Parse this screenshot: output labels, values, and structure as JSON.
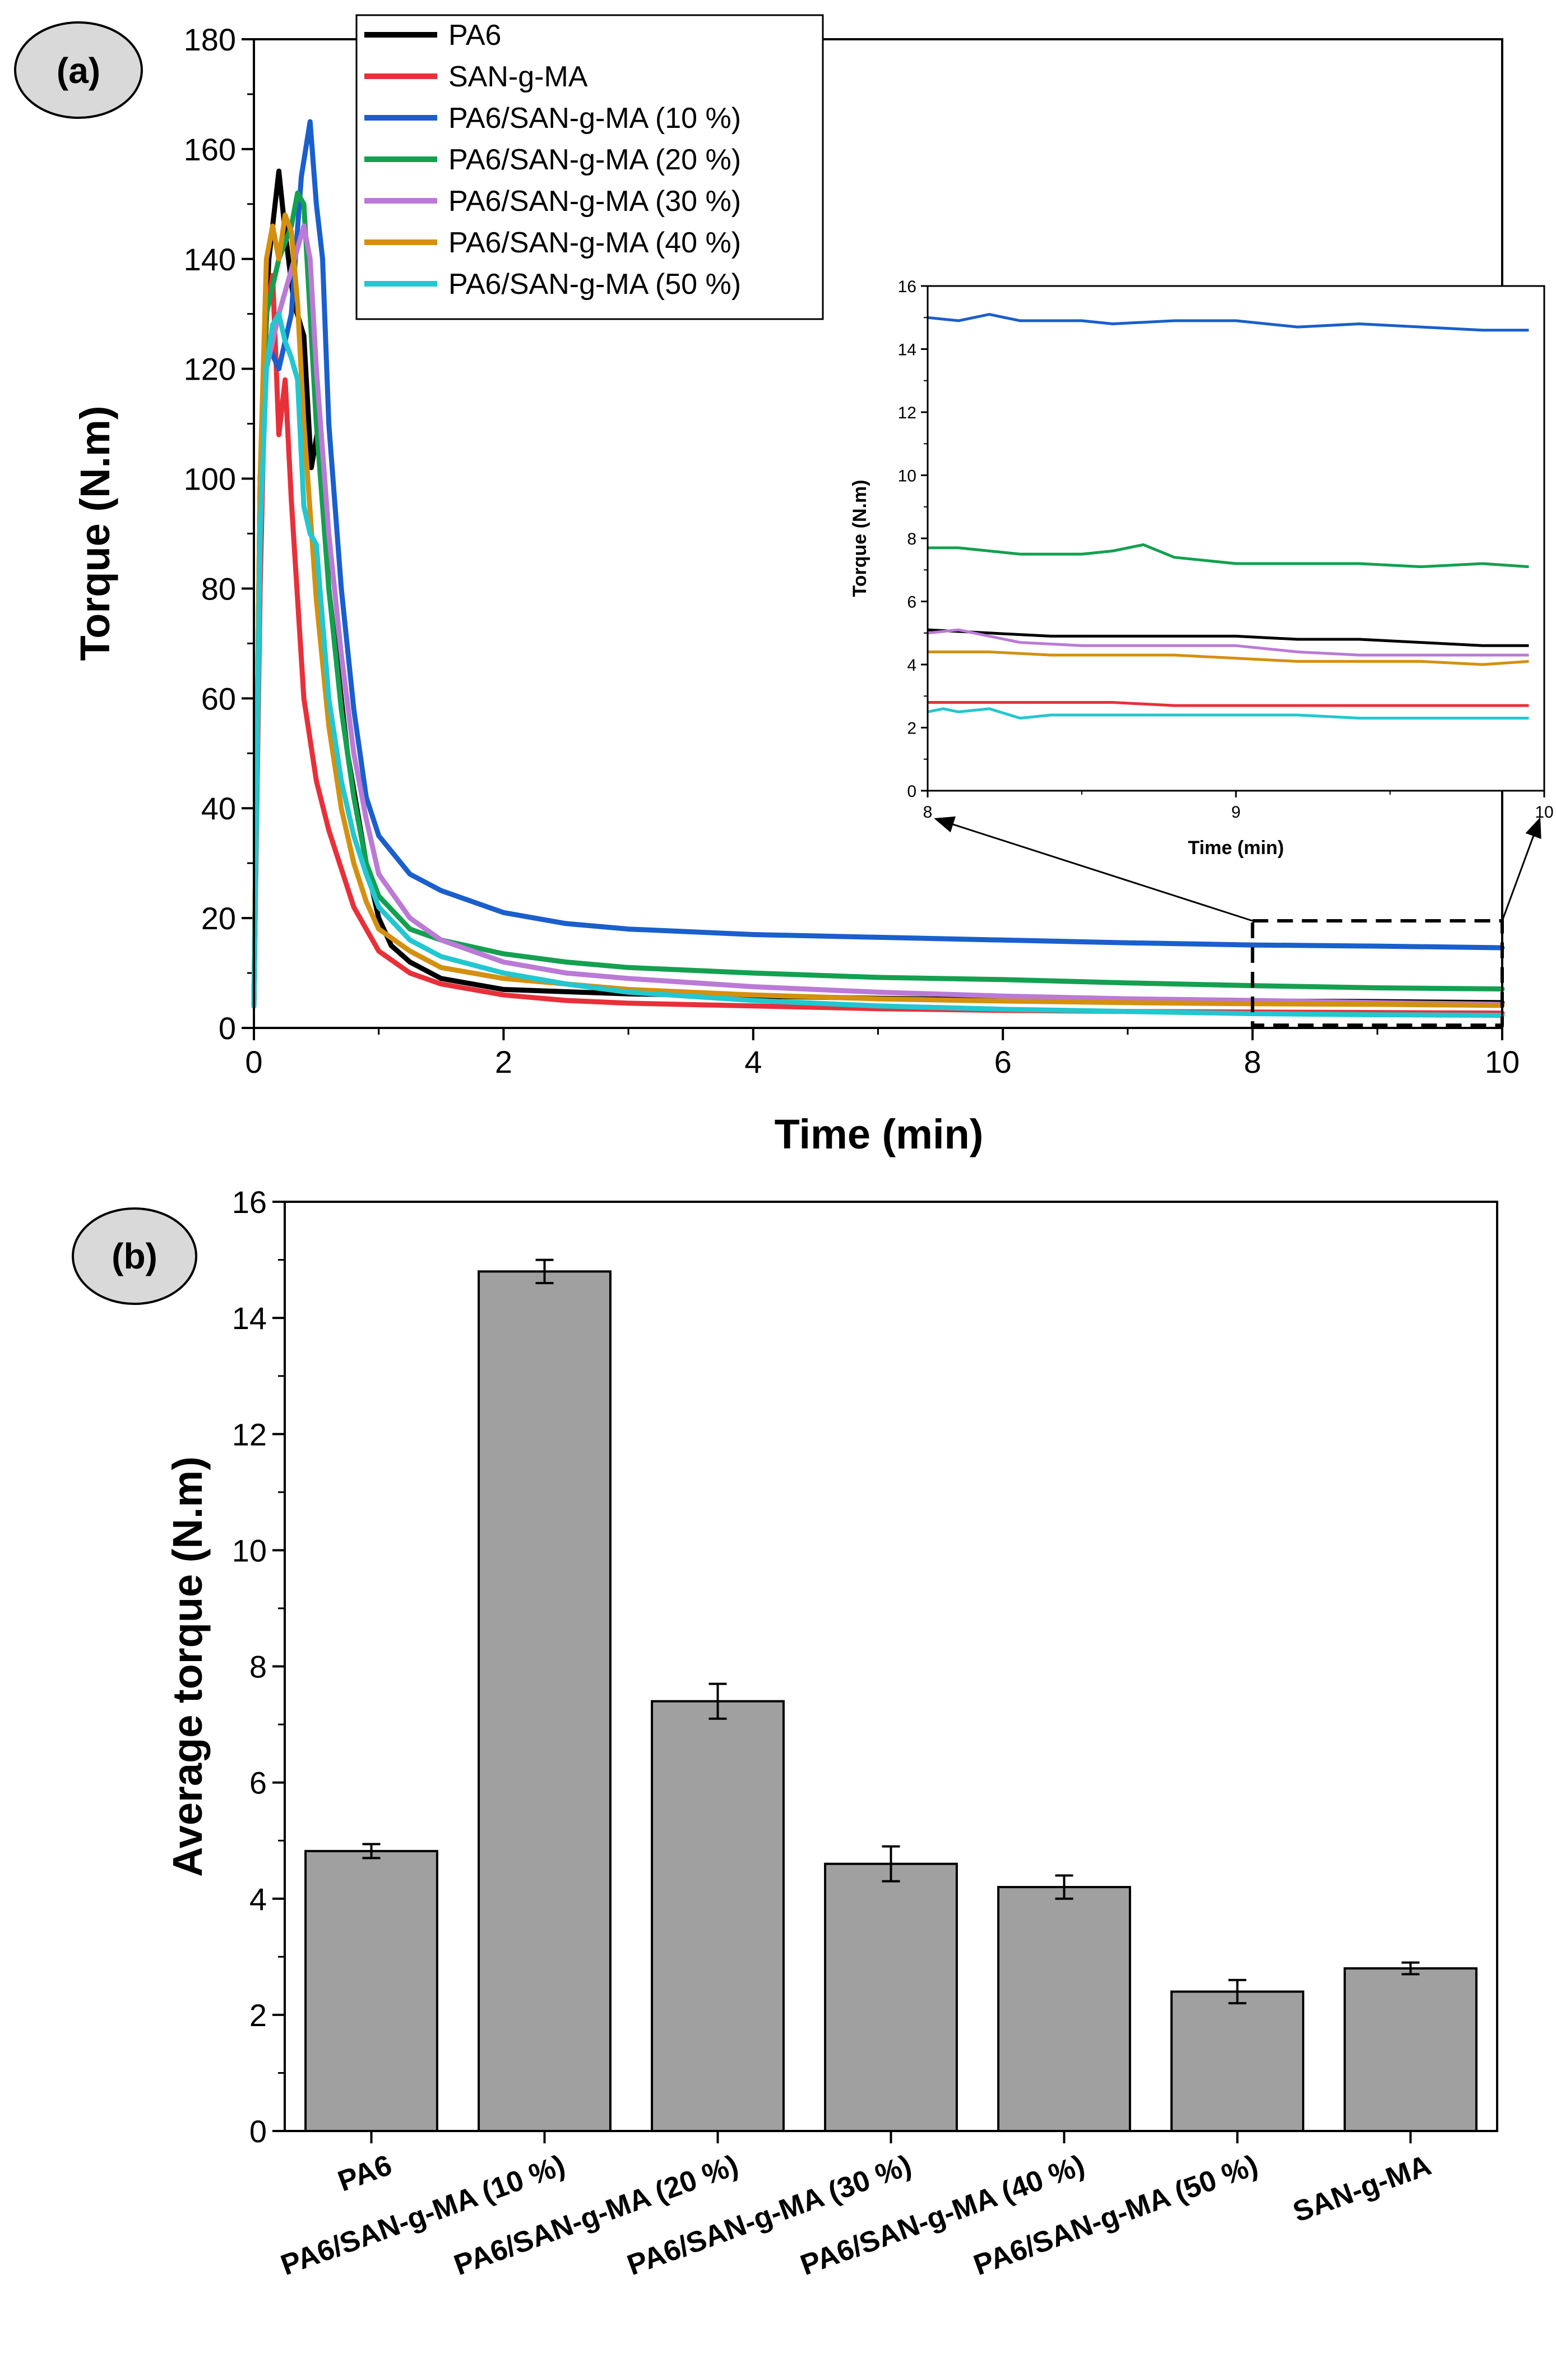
{
  "chart_data": [
    {
      "type": "line",
      "panel_label": "(a)",
      "xlabel": "Time (min)",
      "ylabel": "Torque (N.m)",
      "xlim": [
        0,
        10
      ],
      "ylim": [
        0,
        180
      ],
      "xticks": [
        0,
        2,
        4,
        6,
        8,
        10
      ],
      "yticks": [
        0,
        20,
        40,
        60,
        80,
        100,
        120,
        140,
        160,
        180
      ],
      "legend_position": "top-center",
      "series": [
        {
          "name": "PA6",
          "color": "#000000",
          "x": [
            0,
            0.05,
            0.12,
            0.2,
            0.25,
            0.32,
            0.4,
            0.46,
            0.52,
            0.6,
            0.75,
            0.9,
            1.0,
            1.1,
            1.25,
            1.5,
            2,
            2.5,
            3,
            4,
            5,
            6,
            7,
            8,
            9,
            10
          ],
          "y": [
            4,
            100,
            140,
            156,
            145,
            132,
            126,
            102,
            110,
            80,
            50,
            30,
            20,
            15,
            12,
            9,
            7,
            6.6,
            6.2,
            5.8,
            5.4,
            5.1,
            5.0,
            4.9,
            4.8,
            4.6
          ]
        },
        {
          "name": "SAN-g-MA",
          "color": "#e8303a",
          "x": [
            0,
            0.05,
            0.1,
            0.15,
            0.2,
            0.25,
            0.3,
            0.4,
            0.5,
            0.6,
            0.8,
            1.0,
            1.25,
            1.5,
            2,
            2.5,
            3,
            4,
            5,
            6,
            7,
            8,
            9,
            10
          ],
          "y": [
            5,
            80,
            130,
            137,
            108,
            118,
            96,
            60,
            45,
            36,
            22,
            14,
            10,
            8,
            6,
            5,
            4.5,
            4,
            3.5,
            3.2,
            3.0,
            2.9,
            2.8,
            2.7
          ]
        },
        {
          "name": "PA6/SAN-g-MA (10 %)",
          "color": "#1a5fcc",
          "x": [
            0,
            0.05,
            0.1,
            0.2,
            0.3,
            0.38,
            0.45,
            0.5,
            0.55,
            0.6,
            0.7,
            0.8,
            0.9,
            1.0,
            1.25,
            1.5,
            2,
            2.5,
            3,
            4,
            5,
            6,
            7,
            8,
            9,
            10
          ],
          "y": [
            4,
            90,
            125,
            120,
            130,
            155,
            165,
            150,
            140,
            110,
            80,
            58,
            42,
            35,
            28,
            25,
            21,
            19,
            18,
            17,
            16.5,
            16,
            15.5,
            15.1,
            14.9,
            14.6
          ]
        },
        {
          "name": "PA6/SAN-g-MA (20 %)",
          "color": "#14a050",
          "x": [
            0,
            0.05,
            0.1,
            0.2,
            0.3,
            0.35,
            0.4,
            0.5,
            0.6,
            0.7,
            0.8,
            0.9,
            1.0,
            1.25,
            1.5,
            2,
            2.5,
            3,
            4,
            5,
            6,
            7,
            8,
            9,
            10
          ],
          "y": [
            5,
            95,
            130,
            140,
            146,
            152,
            150,
            110,
            80,
            58,
            42,
            30,
            24,
            18,
            16,
            13.5,
            12,
            11,
            10,
            9.2,
            8.8,
            8.2,
            7.7,
            7.3,
            7.1
          ]
        },
        {
          "name": "PA6/SAN-g-MA (30 %)",
          "color": "#bb7ad6",
          "x": [
            0,
            0.05,
            0.1,
            0.2,
            0.3,
            0.4,
            0.45,
            0.5,
            0.6,
            0.7,
            0.8,
            0.9,
            1.0,
            1.25,
            1.5,
            2,
            2.5,
            3,
            4,
            5,
            6,
            7,
            8,
            9,
            10
          ],
          "y": [
            5,
            90,
            120,
            130,
            138,
            146,
            140,
            120,
            90,
            68,
            50,
            38,
            28,
            20,
            16,
            12,
            10,
            9,
            7.5,
            6.5,
            5.8,
            5.3,
            5.0,
            4.6,
            4.3
          ]
        },
        {
          "name": "PA6/SAN-g-MA (40 %)",
          "color": "#d4900f",
          "x": [
            0,
            0.05,
            0.1,
            0.15,
            0.2,
            0.25,
            0.3,
            0.35,
            0.4,
            0.5,
            0.6,
            0.7,
            0.8,
            0.9,
            1.0,
            1.25,
            1.5,
            2,
            2.5,
            3,
            4,
            5,
            6,
            7,
            8,
            9,
            10
          ],
          "y": [
            5,
            100,
            140,
            146,
            140,
            148,
            145,
            132,
            110,
            78,
            55,
            40,
            30,
            23,
            18,
            14,
            11,
            9,
            8,
            7,
            6,
            5.3,
            4.9,
            4.6,
            4.4,
            4.3,
            4.1
          ]
        },
        {
          "name": "PA6/SAN-g-MA (50 %)",
          "color": "#22c7d0",
          "x": [
            0,
            0.05,
            0.1,
            0.15,
            0.2,
            0.25,
            0.3,
            0.35,
            0.4,
            0.45,
            0.5,
            0.6,
            0.7,
            0.8,
            0.9,
            1.0,
            1.25,
            1.5,
            2,
            2.5,
            3,
            4,
            5,
            6,
            7,
            8,
            9,
            10
          ],
          "y": [
            4,
            90,
            120,
            128,
            130,
            125,
            122,
            118,
            95,
            90,
            88,
            60,
            45,
            35,
            28,
            22,
            16,
            13,
            10,
            8,
            6.5,
            5,
            4,
            3.4,
            3.0,
            2.6,
            2.4,
            2.3
          ]
        }
      ],
      "annotations": [
        {
          "type": "dashed-box",
          "xrange": [
            8,
            10
          ],
          "yrange": [
            0.5,
            19.5
          ]
        },
        {
          "type": "arrow",
          "from": "box top-left corner",
          "to": "inset x = 8"
        },
        {
          "type": "arrow",
          "from": "box top-right corner",
          "to": "inset x = 10"
        }
      ],
      "inset": {
        "xlabel": "Time (min)",
        "ylabel": "Torque (N.m)",
        "xlim": [
          8,
          10
        ],
        "ylim": [
          0,
          16
        ],
        "xticks": [
          8,
          9,
          10
        ],
        "yticks": [
          0,
          2,
          4,
          6,
          8,
          10,
          12,
          14,
          16
        ],
        "series": [
          {
            "name": "PA6/SAN-g-MA (10 %)",
            "color": "#1a5fcc",
            "x": [
              8,
              8.1,
              8.2,
              8.3,
              8.5,
              8.6,
              8.8,
              9.0,
              9.2,
              9.4,
              9.6,
              9.8,
              9.95
            ],
            "y": [
              15.0,
              14.9,
              15.1,
              14.9,
              14.9,
              14.8,
              14.9,
              14.9,
              14.7,
              14.8,
              14.7,
              14.6,
              14.6
            ]
          },
          {
            "name": "PA6/SAN-g-MA (20 %)",
            "color": "#14a050",
            "x": [
              8,
              8.1,
              8.2,
              8.3,
              8.5,
              8.6,
              8.7,
              8.8,
              9.0,
              9.2,
              9.4,
              9.6,
              9.8,
              9.95
            ],
            "y": [
              7.7,
              7.7,
              7.6,
              7.5,
              7.5,
              7.6,
              7.8,
              7.4,
              7.2,
              7.2,
              7.2,
              7.1,
              7.2,
              7.1
            ]
          },
          {
            "name": "PA6",
            "color": "#000000",
            "x": [
              8,
              8.2,
              8.4,
              8.6,
              8.8,
              9.0,
              9.2,
              9.4,
              9.6,
              9.8,
              9.95
            ],
            "y": [
              5.1,
              5.0,
              4.9,
              4.9,
              4.9,
              4.9,
              4.8,
              4.8,
              4.7,
              4.6,
              4.6
            ]
          },
          {
            "name": "PA6/SAN-g-MA (30 %)",
            "color": "#bb7ad6",
            "x": [
              8,
              8.1,
              8.2,
              8.3,
              8.5,
              8.7,
              9.0,
              9.2,
              9.4,
              9.6,
              9.8,
              9.95
            ],
            "y": [
              5.0,
              5.1,
              4.9,
              4.7,
              4.6,
              4.6,
              4.6,
              4.4,
              4.3,
              4.3,
              4.3,
              4.3
            ]
          },
          {
            "name": "PA6/SAN-g-MA (40 %)",
            "color": "#d4900f",
            "x": [
              8,
              8.2,
              8.4,
              8.6,
              8.8,
              9.0,
              9.2,
              9.4,
              9.6,
              9.8,
              9.95
            ],
            "y": [
              4.4,
              4.4,
              4.3,
              4.3,
              4.3,
              4.2,
              4.1,
              4.1,
              4.1,
              4.0,
              4.1
            ]
          },
          {
            "name": "SAN-g-MA",
            "color": "#e8303a",
            "x": [
              8,
              8.2,
              8.4,
              8.6,
              8.8,
              9.0,
              9.2,
              9.4,
              9.6,
              9.8,
              9.95
            ],
            "y": [
              2.8,
              2.8,
              2.8,
              2.8,
              2.7,
              2.7,
              2.7,
              2.7,
              2.7,
              2.7,
              2.7
            ]
          },
          {
            "name": "PA6/SAN-g-MA (50 %)",
            "color": "#22c7d0",
            "x": [
              8,
              8.05,
              8.1,
              8.2,
              8.3,
              8.4,
              8.6,
              8.8,
              9.0,
              9.2,
              9.4,
              9.6,
              9.8,
              9.95
            ],
            "y": [
              2.5,
              2.6,
              2.5,
              2.6,
              2.3,
              2.4,
              2.4,
              2.4,
              2.4,
              2.4,
              2.3,
              2.3,
              2.3,
              2.3
            ]
          }
        ]
      }
    },
    {
      "type": "bar",
      "panel_label": "(b)",
      "xlabel": "",
      "ylabel": "Average torque (N.m)",
      "ylim": [
        0,
        16
      ],
      "yticks": [
        0,
        2,
        4,
        6,
        8,
        10,
        12,
        14,
        16
      ],
      "categories": [
        "PA6",
        "PA6/SAN-g-MA (10 %)",
        "PA6/SAN-g-MA (20 %)",
        "PA6/SAN-g-MA (30 %)",
        "PA6/SAN-g-MA (40 %)",
        "PA6/SAN-g-MA (50 %)",
        "SAN-g-MA"
      ],
      "values": [
        4.82,
        14.8,
        7.4,
        4.6,
        4.2,
        2.4,
        2.8
      ],
      "errors": [
        0.12,
        0.2,
        0.3,
        0.3,
        0.2,
        0.2,
        0.1
      ],
      "bar_color": "#a0a0a0"
    }
  ]
}
